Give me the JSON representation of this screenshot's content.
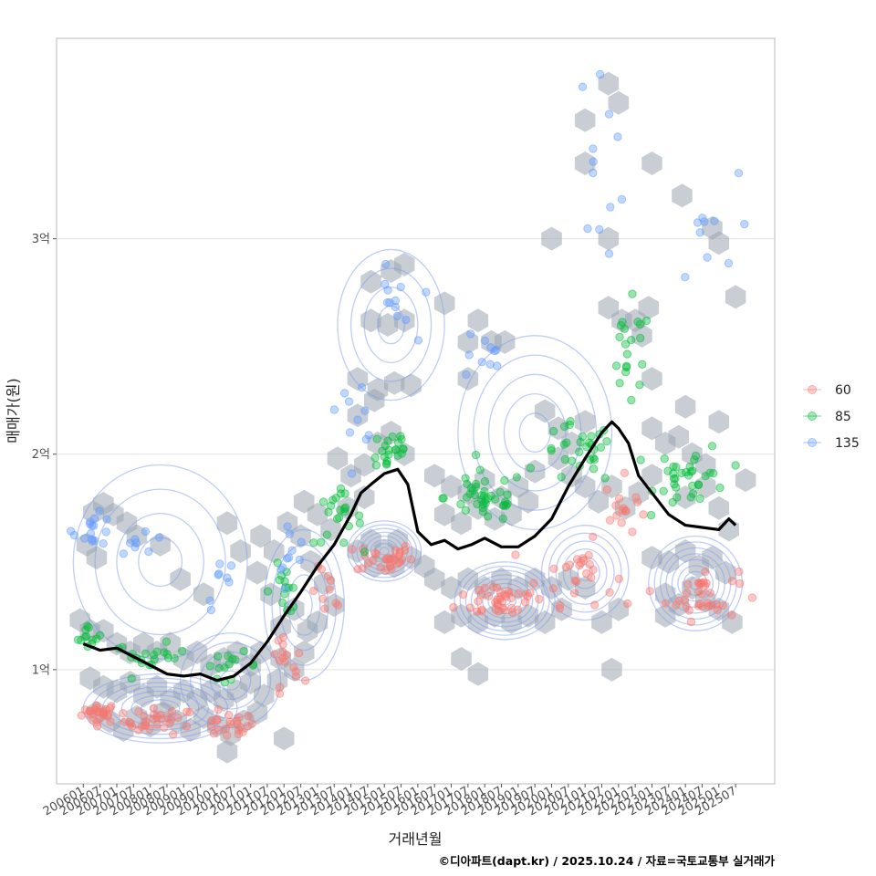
{
  "chart_data": {
    "type": "scatter",
    "xlabel": "거래년월",
    "ylabel": "매매가(원)",
    "caption": "©디아파트(dapt.kr) / 2025.10.24 / 자료=국토교통부 실거래가",
    "y_ticks": [
      {
        "value": 1.0,
        "label": "1억"
      },
      {
        "value": 2.0,
        "label": "2억"
      },
      {
        "value": 3.0,
        "label": "3억"
      }
    ],
    "ylim": [
      0.47,
      3.93
    ],
    "xlim": [
      2005.2,
      2026.67
    ],
    "x_tick_labels": [
      "200601",
      "200607",
      "200701",
      "200707",
      "200801",
      "200807",
      "200901",
      "200907",
      "201001",
      "201007",
      "201101",
      "201107",
      "201201",
      "201207",
      "201301",
      "201307",
      "201401",
      "201407",
      "201501",
      "201507",
      "201601",
      "201607",
      "201701",
      "201707",
      "201801",
      "201807",
      "201901",
      "201907",
      "202001",
      "202007",
      "202101",
      "202107",
      "202201",
      "202207",
      "202301",
      "202307",
      "202401",
      "202407",
      "202501",
      "202507"
    ],
    "legend": [
      {
        "name": "60",
        "color": "#F8766D"
      },
      {
        "name": "85",
        "color": "#00BA38"
      },
      {
        "name": "135",
        "color": "#619CFF"
      }
    ],
    "series": [
      {
        "name": "60",
        "color": "#F8766D",
        "clusters": [
          {
            "x": 2006.5,
            "y": 0.8,
            "sx": 0.45,
            "sy": 0.04,
            "n": 25
          },
          {
            "x": 2008.3,
            "y": 0.76,
            "sx": 0.9,
            "sy": 0.05,
            "n": 30
          },
          {
            "x": 2010.3,
            "y": 0.74,
            "sx": 0.7,
            "sy": 0.05,
            "n": 22
          },
          {
            "x": 2012.0,
            "y": 1.0,
            "sx": 0.5,
            "sy": 0.15,
            "n": 16
          },
          {
            "x": 2013.3,
            "y": 1.35,
            "sx": 0.4,
            "sy": 0.1,
            "n": 10
          },
          {
            "x": 2015.0,
            "y": 1.52,
            "sx": 0.7,
            "sy": 0.06,
            "n": 30
          },
          {
            "x": 2018.5,
            "y": 1.33,
            "sx": 1.1,
            "sy": 0.08,
            "n": 40
          },
          {
            "x": 2020.8,
            "y": 1.45,
            "sx": 0.9,
            "sy": 0.12,
            "n": 25
          },
          {
            "x": 2022.2,
            "y": 1.75,
            "sx": 0.5,
            "sy": 0.12,
            "n": 15
          },
          {
            "x": 2024.5,
            "y": 1.35,
            "sx": 0.9,
            "sy": 0.1,
            "n": 35
          }
        ]
      },
      {
        "name": "85",
        "color": "#00BA38",
        "clusters": [
          {
            "x": 2006.2,
            "y": 1.15,
            "sx": 0.3,
            "sy": 0.05,
            "n": 12
          },
          {
            "x": 2008.0,
            "y": 1.06,
            "sx": 0.9,
            "sy": 0.05,
            "n": 20
          },
          {
            "x": 2010.4,
            "y": 1.02,
            "sx": 0.7,
            "sy": 0.05,
            "n": 14
          },
          {
            "x": 2012.0,
            "y": 1.38,
            "sx": 0.5,
            "sy": 0.1,
            "n": 14
          },
          {
            "x": 2013.6,
            "y": 1.7,
            "sx": 0.6,
            "sy": 0.1,
            "n": 22
          },
          {
            "x": 2015.2,
            "y": 2.02,
            "sx": 0.5,
            "sy": 0.1,
            "n": 22
          },
          {
            "x": 2018.0,
            "y": 1.8,
            "sx": 1.0,
            "sy": 0.1,
            "n": 40
          },
          {
            "x": 2020.8,
            "y": 2.0,
            "sx": 0.9,
            "sy": 0.12,
            "n": 30
          },
          {
            "x": 2022.3,
            "y": 2.45,
            "sx": 0.6,
            "sy": 0.2,
            "n": 20
          },
          {
            "x": 2024.2,
            "y": 1.9,
            "sx": 0.9,
            "sy": 0.12,
            "n": 35
          }
        ]
      },
      {
        "name": "135",
        "color": "#619CFF",
        "clusters": [
          {
            "x": 2006.3,
            "y": 1.65,
            "sx": 0.5,
            "sy": 0.06,
            "n": 16
          },
          {
            "x": 2007.8,
            "y": 1.6,
            "sx": 0.6,
            "sy": 0.05,
            "n": 8
          },
          {
            "x": 2010.3,
            "y": 1.4,
            "sx": 0.6,
            "sy": 0.1,
            "n": 8
          },
          {
            "x": 2012.0,
            "y": 1.55,
            "sx": 0.6,
            "sy": 0.12,
            "n": 10
          },
          {
            "x": 2014.2,
            "y": 2.2,
            "sx": 0.5,
            "sy": 0.12,
            "n": 10
          },
          {
            "x": 2015.3,
            "y": 2.68,
            "sx": 0.5,
            "sy": 0.15,
            "n": 12
          },
          {
            "x": 2017.8,
            "y": 2.45,
            "sx": 0.7,
            "sy": 0.12,
            "n": 10
          },
          {
            "x": 2021.5,
            "y": 3.4,
            "sx": 0.6,
            "sy": 0.35,
            "n": 12
          },
          {
            "x": 2024.5,
            "y": 3.0,
            "sx": 0.9,
            "sy": 0.25,
            "n": 10
          }
        ]
      }
    ],
    "trend": {
      "name": "median",
      "x": [
        2006.0,
        2006.5,
        2007.0,
        2007.5,
        2008.0,
        2008.5,
        2009.0,
        2009.5,
        2010.0,
        2010.5,
        2011.0,
        2011.5,
        2012.0,
        2012.5,
        2013.0,
        2013.5,
        2014.0,
        2014.3,
        2014.6,
        2015.0,
        2015.4,
        2015.7,
        2016.0,
        2016.4,
        2016.8,
        2017.2,
        2017.6,
        2018.0,
        2018.5,
        2019.0,
        2019.5,
        2020.0,
        2020.5,
        2021.0,
        2021.5,
        2021.8,
        2022.0,
        2022.3,
        2022.6,
        2023.0,
        2023.5,
        2024.0,
        2024.5,
        2025.0,
        2025.3,
        2025.5
      ],
      "y": [
        1.12,
        1.09,
        1.1,
        1.06,
        1.02,
        0.98,
        0.97,
        0.98,
        0.95,
        0.97,
        1.03,
        1.13,
        1.25,
        1.36,
        1.48,
        1.58,
        1.72,
        1.82,
        1.86,
        1.91,
        1.93,
        1.86,
        1.64,
        1.58,
        1.6,
        1.56,
        1.58,
        1.61,
        1.57,
        1.57,
        1.62,
        1.7,
        1.85,
        1.98,
        2.1,
        2.15,
        2.12,
        2.05,
        1.9,
        1.82,
        1.72,
        1.67,
        1.66,
        1.65,
        1.7,
        1.67
      ]
    },
    "hex_bins": [
      [
        2006.3,
        1.73
      ],
      [
        2006.6,
        1.77
      ],
      [
        2006.9,
        1.72
      ],
      [
        2007.3,
        1.68
      ],
      [
        2007.6,
        1.62
      ],
      [
        2008.3,
        1.58
      ],
      [
        2006.1,
        1.58
      ],
      [
        2006.4,
        1.52
      ],
      [
        2008.9,
        1.42
      ],
      [
        2009.6,
        1.35
      ],
      [
        2005.9,
        1.23
      ],
      [
        2006.2,
        1.18
      ],
      [
        2006.6,
        1.18
      ],
      [
        2007.0,
        1.12
      ],
      [
        2007.4,
        1.08
      ],
      [
        2007.8,
        1.12
      ],
      [
        2008.2,
        1.08
      ],
      [
        2008.6,
        1.12
      ],
      [
        2009.0,
        1.05
      ],
      [
        2009.4,
        1.08
      ],
      [
        2009.8,
        1.02
      ],
      [
        2010.2,
        1.05
      ],
      [
        2010.6,
        1.08
      ],
      [
        2011.0,
        1.02
      ],
      [
        2011.3,
        1.08
      ],
      [
        2006.2,
        0.96
      ],
      [
        2006.6,
        0.92
      ],
      [
        2007.0,
        0.9
      ],
      [
        2007.4,
        0.94
      ],
      [
        2007.8,
        0.88
      ],
      [
        2008.2,
        0.92
      ],
      [
        2008.6,
        0.86
      ],
      [
        2009.0,
        0.9
      ],
      [
        2009.4,
        0.86
      ],
      [
        2009.8,
        0.9
      ],
      [
        2010.2,
        0.86
      ],
      [
        2010.6,
        0.9
      ],
      [
        2011.0,
        0.94
      ],
      [
        2011.4,
        0.88
      ],
      [
        2011.8,
        0.95
      ],
      [
        2006.4,
        0.8
      ],
      [
        2006.8,
        0.76
      ],
      [
        2007.2,
        0.72
      ],
      [
        2007.6,
        0.78
      ],
      [
        2008.0,
        0.74
      ],
      [
        2008.4,
        0.8
      ],
      [
        2008.8,
        0.76
      ],
      [
        2009.2,
        0.72
      ],
      [
        2009.6,
        0.78
      ],
      [
        2010.0,
        0.74
      ],
      [
        2010.4,
        0.7
      ],
      [
        2010.8,
        0.76
      ],
      [
        2011.2,
        0.8
      ],
      [
        2010.3,
        0.62
      ],
      [
        2012.0,
        0.68
      ],
      [
        2010.3,
        1.68
      ],
      [
        2010.7,
        1.55
      ],
      [
        2011.2,
        1.45
      ],
      [
        2011.6,
        1.35
      ],
      [
        2011.3,
        1.62
      ],
      [
        2011.7,
        1.55
      ],
      [
        2012.1,
        1.68
      ],
      [
        2012.5,
        1.62
      ],
      [
        2012.8,
        1.5
      ],
      [
        2013.2,
        1.4
      ],
      [
        2013.5,
        1.3
      ],
      [
        2012.6,
        1.78
      ],
      [
        2013.0,
        1.72
      ],
      [
        2013.4,
        1.65
      ],
      [
        2013.9,
        1.75
      ],
      [
        2011.9,
        1.2
      ],
      [
        2012.3,
        1.28
      ],
      [
        2012.7,
        1.18
      ],
      [
        2013.0,
        1.22
      ],
      [
        2012.3,
        1.0
      ],
      [
        2011.9,
        1.05
      ],
      [
        2012.6,
        1.08
      ],
      [
        2014.0,
        1.9
      ],
      [
        2014.4,
        1.95
      ],
      [
        2014.8,
        2.05
      ],
      [
        2015.2,
        2.1
      ],
      [
        2015.6,
        2.0
      ],
      [
        2014.2,
        2.18
      ],
      [
        2014.8,
        2.3
      ],
      [
        2015.3,
        2.33
      ],
      [
        2015.8,
        2.32
      ],
      [
        2014.2,
        2.35
      ],
      [
        2014.7,
        2.25
      ],
      [
        2014.2,
        1.55
      ],
      [
        2014.6,
        1.6
      ],
      [
        2015.0,
        1.55
      ],
      [
        2015.4,
        1.6
      ],
      [
        2015.8,
        1.52
      ],
      [
        2016.2,
        1.48
      ],
      [
        2015.3,
        1.48
      ],
      [
        2014.7,
        1.48
      ],
      [
        2014.4,
        1.8
      ],
      [
        2013.6,
        1.98
      ],
      [
        2014.6,
        2.62
      ],
      [
        2015.1,
        2.6
      ],
      [
        2015.6,
        2.62
      ],
      [
        2014.6,
        2.8
      ],
      [
        2015.2,
        2.85
      ],
      [
        2015.6,
        2.88
      ],
      [
        2016.8,
        2.7
      ],
      [
        2017.8,
        2.62
      ],
      [
        2017.5,
        2.52
      ],
      [
        2018.2,
        2.52
      ],
      [
        2018.6,
        2.52
      ],
      [
        2017.5,
        2.35
      ],
      [
        2016.5,
        1.9
      ],
      [
        2017.0,
        1.85
      ],
      [
        2017.5,
        1.82
      ],
      [
        2018.0,
        1.88
      ],
      [
        2018.5,
        1.8
      ],
      [
        2019.0,
        1.85
      ],
      [
        2019.5,
        1.92
      ],
      [
        2016.8,
        1.72
      ],
      [
        2017.3,
        1.68
      ],
      [
        2017.8,
        1.75
      ],
      [
        2018.3,
        1.7
      ],
      [
        2018.8,
        1.72
      ],
      [
        2019.3,
        1.78
      ],
      [
        2016.5,
        1.42
      ],
      [
        2017.0,
        1.38
      ],
      [
        2017.5,
        1.42
      ],
      [
        2018.0,
        1.38
      ],
      [
        2018.5,
        1.42
      ],
      [
        2019.0,
        1.38
      ],
      [
        2019.5,
        1.42
      ],
      [
        2020.0,
        1.38
      ],
      [
        2020.5,
        1.42
      ],
      [
        2021.0,
        1.38
      ],
      [
        2016.8,
        1.22
      ],
      [
        2017.3,
        1.25
      ],
      [
        2017.8,
        1.22
      ],
      [
        2018.3,
        1.25
      ],
      [
        2018.8,
        1.22
      ],
      [
        2019.3,
        1.25
      ],
      [
        2019.8,
        1.22
      ],
      [
        2020.3,
        1.28
      ],
      [
        2017.3,
        1.05
      ],
      [
        2017.8,
        0.98
      ],
      [
        2019.8,
        2.2
      ],
      [
        2020.2,
        2.12
      ],
      [
        2020.6,
        2.05
      ],
      [
        2021.0,
        2.15
      ],
      [
        2020.2,
        1.98
      ],
      [
        2020.6,
        1.9
      ],
      [
        2021.0,
        1.85
      ],
      [
        2021.4,
        1.78
      ],
      [
        2021.8,
        1.85
      ],
      [
        2022.2,
        1.75
      ],
      [
        2022.6,
        1.82
      ],
      [
        2023.0,
        1.9
      ],
      [
        2020.0,
        3.0
      ],
      [
        2021.0,
        3.35
      ],
      [
        2021.0,
        3.55
      ],
      [
        2021.7,
        3.72
      ],
      [
        2022.0,
        3.63
      ],
      [
        2021.7,
        3.0
      ],
      [
        2023.0,
        3.35
      ],
      [
        2021.7,
        2.68
      ],
      [
        2022.1,
        2.62
      ],
      [
        2022.5,
        2.62
      ],
      [
        2022.9,
        2.68
      ],
      [
        2022.7,
        2.55
      ],
      [
        2023.0,
        2.35
      ],
      [
        2023.0,
        2.12
      ],
      [
        2023.4,
        2.05
      ],
      [
        2023.8,
        2.08
      ],
      [
        2024.2,
        2.0
      ],
      [
        2024.6,
        1.95
      ],
      [
        2025.0,
        2.15
      ],
      [
        2024.0,
        2.22
      ],
      [
        2024.6,
        1.85
      ],
      [
        2025.0,
        1.75
      ],
      [
        2025.3,
        1.65
      ],
      [
        2025.8,
        1.88
      ],
      [
        2024.0,
        1.8
      ],
      [
        2023.0,
        1.52
      ],
      [
        2023.5,
        1.5
      ],
      [
        2024.0,
        1.55
      ],
      [
        2024.4,
        1.48
      ],
      [
        2024.8,
        1.52
      ],
      [
        2025.2,
        1.45
      ],
      [
        2023.4,
        1.35
      ],
      [
        2023.8,
        1.3
      ],
      [
        2024.2,
        1.38
      ],
      [
        2024.6,
        1.32
      ],
      [
        2025.0,
        1.28
      ],
      [
        2025.4,
        1.22
      ],
      [
        2023.4,
        1.25
      ],
      [
        2021.5,
        1.22
      ],
      [
        2022.0,
        1.28
      ],
      [
        2021.8,
        1.0
      ],
      [
        2023.9,
        3.2
      ],
      [
        2024.8,
        3.05
      ],
      [
        2025.0,
        2.98
      ],
      [
        2025.5,
        2.73
      ]
    ]
  }
}
